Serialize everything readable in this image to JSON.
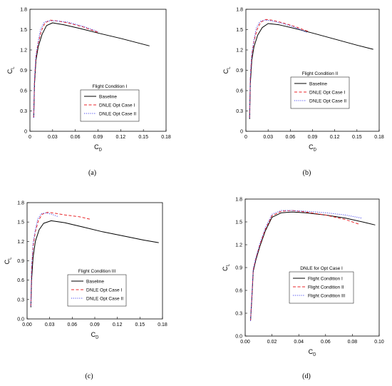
{
  "chart_data": [
    {
      "type": "line",
      "panel_label": "(a)",
      "xlabel": "C",
      "xlabel_sub": "D",
      "ylabel": "C",
      "ylabel_sub": "L",
      "xlim": [
        0,
        0.18
      ],
      "ylim": [
        0,
        1.8
      ],
      "xticks": [
        "0",
        "0.03",
        "0.06",
        "0.09",
        "0.12",
        "0.15",
        "0.18"
      ],
      "yticks": [
        "0",
        "0.3",
        "0.6",
        "0.9",
        "1.2",
        "1.5",
        "1.8"
      ],
      "legend_title": "Flight Condition I",
      "legend_placement": "center",
      "series": [
        {
          "name": "Baseline",
          "color": "#000000",
          "dash": "solid",
          "x": [
            0.005,
            0.006,
            0.008,
            0.011,
            0.016,
            0.022,
            0.03,
            0.045,
            0.065,
            0.09,
            0.12,
            0.158
          ],
          "y": [
            0.2,
            0.7,
            1.05,
            1.25,
            1.43,
            1.56,
            1.6,
            1.57,
            1.52,
            1.45,
            1.37,
            1.26
          ]
        },
        {
          "name": "DNLE Opt  Case I",
          "color": "#e8262a",
          "dash": "dashed",
          "x": [
            0.005,
            0.006,
            0.008,
            0.011,
            0.015,
            0.02,
            0.027,
            0.035,
            0.05,
            0.07,
            0.09
          ],
          "y": [
            0.2,
            0.75,
            1.1,
            1.3,
            1.48,
            1.6,
            1.64,
            1.63,
            1.6,
            1.54,
            1.46
          ]
        },
        {
          "name": "DNLE Opt  Case II",
          "color": "#4a4aef",
          "dash": "dotted",
          "x": [
            0.005,
            0.006,
            0.008,
            0.011,
            0.014,
            0.019,
            0.025,
            0.035,
            0.05,
            0.07,
            0.09
          ],
          "y": [
            0.2,
            0.78,
            1.13,
            1.33,
            1.5,
            1.61,
            1.63,
            1.63,
            1.61,
            1.55,
            1.47
          ]
        }
      ]
    },
    {
      "type": "line",
      "panel_label": "(b)",
      "xlabel": "C",
      "xlabel_sub": "D",
      "ylabel": "C",
      "ylabel_sub": "L",
      "xlim": [
        0,
        0.18
      ],
      "ylim": [
        0,
        1.8
      ],
      "xticks": [
        "0",
        "0.03",
        "0.06",
        "0.09",
        "0.12",
        "0.15",
        "0.18"
      ],
      "yticks": [
        "0",
        "0.3",
        "0.6",
        "0.9",
        "1.2",
        "1.5",
        "1.8"
      ],
      "legend_title": "Flight Condition II",
      "legend_placement": "center-right",
      "series": [
        {
          "name": "Baseline",
          "color": "#000000",
          "dash": "solid",
          "x": [
            0.005,
            0.006,
            0.008,
            0.011,
            0.016,
            0.022,
            0.03,
            0.045,
            0.065,
            0.09,
            0.12,
            0.15,
            0.172
          ],
          "y": [
            0.18,
            0.7,
            1.05,
            1.25,
            1.42,
            1.53,
            1.59,
            1.57,
            1.52,
            1.45,
            1.36,
            1.27,
            1.21
          ]
        },
        {
          "name": "DNLE Opt  Case I",
          "color": "#e8262a",
          "dash": "dashed",
          "x": [
            0.005,
            0.006,
            0.008,
            0.011,
            0.015,
            0.02,
            0.027,
            0.035,
            0.05,
            0.065,
            0.085
          ],
          "y": [
            0.2,
            0.78,
            1.13,
            1.33,
            1.5,
            1.61,
            1.65,
            1.64,
            1.6,
            1.55,
            1.47
          ]
        },
        {
          "name": "DNLE Opt  Case II",
          "color": "#4a4aef",
          "dash": "dotted",
          "x": [
            0.005,
            0.006,
            0.008,
            0.011,
            0.014,
            0.019,
            0.025,
            0.035,
            0.05,
            0.065,
            0.082
          ],
          "y": [
            0.2,
            0.8,
            1.15,
            1.35,
            1.52,
            1.62,
            1.64,
            1.63,
            1.59,
            1.54,
            1.46
          ]
        }
      ]
    },
    {
      "type": "line",
      "panel_label": "(c)",
      "xlabel": "C",
      "xlabel_sub": "D",
      "ylabel": "C",
      "ylabel_sub": "L",
      "xlim": [
        0,
        0.18
      ],
      "ylim": [
        0,
        1.8
      ],
      "xticks": [
        "0.00",
        "0.03",
        "0.06",
        "0.09",
        "0.12",
        "0.15",
        "0.18"
      ],
      "yticks": [
        "0.0",
        "0.3",
        "0.6",
        "0.9",
        "1.2",
        "1.5",
        "1.8"
      ],
      "legend_title": "Flight Condition III",
      "legend_placement": "center-right",
      "series": [
        {
          "name": "Baseline",
          "color": "#000000",
          "dash": "solid",
          "x": [
            0.005,
            0.006,
            0.008,
            0.011,
            0.016,
            0.022,
            0.032,
            0.05,
            0.075,
            0.1,
            0.13,
            0.155,
            0.175
          ],
          "y": [
            0.18,
            0.6,
            0.95,
            1.2,
            1.38,
            1.48,
            1.52,
            1.49,
            1.42,
            1.35,
            1.28,
            1.22,
            1.18
          ]
        },
        {
          "name": "DNLE Opt  Case I",
          "color": "#e8262a",
          "dash": "dashed",
          "x": [
            0.005,
            0.006,
            0.008,
            0.011,
            0.015,
            0.02,
            0.027,
            0.035,
            0.05,
            0.07,
            0.085
          ],
          "y": [
            0.2,
            0.75,
            1.12,
            1.35,
            1.52,
            1.62,
            1.65,
            1.64,
            1.61,
            1.58,
            1.54
          ]
        },
        {
          "name": "DNLE Opt  Case II",
          "color": "#4a4aef",
          "dash": "dotted",
          "x": [
            0.005,
            0.006,
            0.008,
            0.011,
            0.014,
            0.019,
            0.025,
            0.033,
            0.042
          ],
          "y": [
            0.2,
            0.8,
            1.17,
            1.38,
            1.54,
            1.63,
            1.64,
            1.62,
            1.58
          ]
        }
      ]
    },
    {
      "type": "line",
      "panel_label": "(d)",
      "xlabel": "C",
      "xlabel_sub": "D",
      "ylabel": "C",
      "ylabel_sub": "L",
      "xlim": [
        0,
        0.1
      ],
      "ylim": [
        0,
        1.8
      ],
      "xticks": [
        "0.00",
        "0.02",
        "0.04",
        "0.06",
        "0.08",
        "0.10"
      ],
      "yticks": [
        "0.0",
        "0.3",
        "0.6",
        "0.9",
        "1.2",
        "1.5",
        "1.8"
      ],
      "legend_title": "DNLE for Opt Case I",
      "legend_placement": "center-right",
      "series": [
        {
          "name": "Flight Condition I",
          "color": "#000000",
          "dash": "solid",
          "x": [
            0.004,
            0.005,
            0.006,
            0.008,
            0.011,
            0.015,
            0.02,
            0.027,
            0.035,
            0.045,
            0.06,
            0.075,
            0.09,
            0.097
          ],
          "y": [
            0.2,
            0.5,
            0.85,
            1.0,
            1.18,
            1.38,
            1.56,
            1.62,
            1.63,
            1.62,
            1.59,
            1.55,
            1.49,
            1.46
          ]
        },
        {
          "name": "Flight Condition II",
          "color": "#e8262a",
          "dash": "dashed",
          "x": [
            0.004,
            0.005,
            0.006,
            0.008,
            0.011,
            0.015,
            0.02,
            0.027,
            0.035,
            0.045,
            0.06,
            0.075,
            0.085
          ],
          "y": [
            0.2,
            0.52,
            0.87,
            1.02,
            1.2,
            1.4,
            1.58,
            1.64,
            1.65,
            1.63,
            1.59,
            1.53,
            1.47
          ]
        },
        {
          "name": "Flight Condition III",
          "color": "#4a4aef",
          "dash": "dotted",
          "x": [
            0.004,
            0.005,
            0.006,
            0.008,
            0.011,
            0.015,
            0.02,
            0.027,
            0.035,
            0.045,
            0.06,
            0.075,
            0.087
          ],
          "y": [
            0.2,
            0.53,
            0.88,
            1.03,
            1.22,
            1.42,
            1.6,
            1.65,
            1.65,
            1.64,
            1.62,
            1.59,
            1.55
          ]
        }
      ]
    }
  ]
}
